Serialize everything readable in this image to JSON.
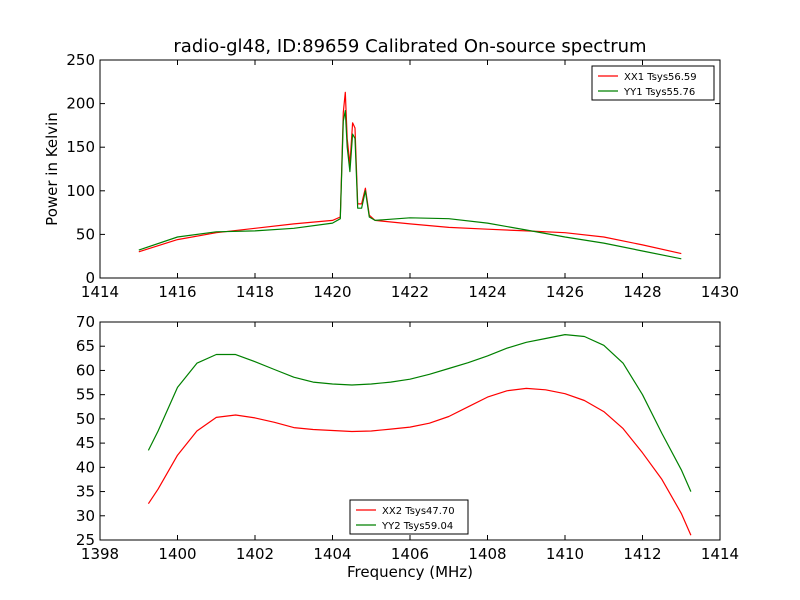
{
  "chart_data": [
    {
      "type": "line",
      "title": "radio-gl48, ID:89659 Calibrated On-source spectrum",
      "xlabel": "",
      "ylabel": "Power in Kelvin",
      "xlim": [
        1414,
        1430
      ],
      "ylim": [
        0,
        250
      ],
      "xticks": [
        "1414",
        "1416",
        "1418",
        "1420",
        "1422",
        "1424",
        "1426",
        "1428",
        "1430"
      ],
      "yticks": [
        "0",
        "50",
        "100",
        "150",
        "200",
        "250"
      ],
      "legend": "top-right",
      "series": [
        {
          "name": "XX1 Tsys56.59",
          "color": "#ff0000",
          "x": [
            1415.0,
            1416.0,
            1417.0,
            1418.0,
            1419.0,
            1420.0,
            1420.2,
            1420.28,
            1420.33,
            1420.38,
            1420.45,
            1420.52,
            1420.58,
            1420.65,
            1420.75,
            1420.85,
            1420.95,
            1421.1,
            1422.0,
            1423.0,
            1424.0,
            1425.0,
            1426.0,
            1427.0,
            1428.0,
            1429.0
          ],
          "y": [
            30,
            44,
            52,
            57,
            62,
            66,
            70,
            190,
            213,
            160,
            130,
            178,
            172,
            85,
            85,
            103,
            72,
            66,
            62,
            58,
            56,
            54,
            52,
            47,
            38,
            28
          ]
        },
        {
          "name": "YY1 Tsys55.76",
          "color": "#008000",
          "x": [
            1415.0,
            1416.0,
            1417.0,
            1418.0,
            1419.0,
            1420.0,
            1420.2,
            1420.28,
            1420.33,
            1420.38,
            1420.45,
            1420.52,
            1420.58,
            1420.65,
            1420.75,
            1420.85,
            1420.95,
            1421.1,
            1422.0,
            1423.0,
            1424.0,
            1425.0,
            1426.0,
            1427.0,
            1428.0,
            1429.0
          ],
          "y": [
            32,
            47,
            53,
            54,
            57,
            63,
            68,
            180,
            192,
            150,
            122,
            165,
            160,
            80,
            80,
            100,
            70,
            66,
            69,
            68,
            63,
            55,
            47,
            40,
            31,
            22
          ]
        }
      ]
    },
    {
      "type": "line",
      "title": "",
      "xlabel": "Frequency (MHz)",
      "ylabel": "",
      "xlim": [
        1398,
        1414
      ],
      "ylim": [
        25,
        70
      ],
      "xticks": [
        "1398",
        "1400",
        "1402",
        "1404",
        "1406",
        "1408",
        "1410",
        "1412",
        "1414"
      ],
      "yticks": [
        "25",
        "30",
        "35",
        "40",
        "45",
        "50",
        "55",
        "60",
        "65",
        "70"
      ],
      "legend": "lower-center",
      "series": [
        {
          "name": "XX2 Tsys47.70",
          "color": "#ff0000",
          "x": [
            1399.25,
            1399.5,
            1400.0,
            1400.5,
            1401.0,
            1401.5,
            1402.0,
            1402.5,
            1403.0,
            1403.5,
            1404.0,
            1404.5,
            1405.0,
            1405.5,
            1406.0,
            1406.5,
            1407.0,
            1407.5,
            1408.0,
            1408.5,
            1409.0,
            1409.5,
            1410.0,
            1410.5,
            1411.0,
            1411.5,
            1412.0,
            1412.5,
            1413.0,
            1413.25
          ],
          "y": [
            32.5,
            35.5,
            42.5,
            47.5,
            50.3,
            50.8,
            50.2,
            49.3,
            48.2,
            47.8,
            47.6,
            47.4,
            47.5,
            47.9,
            48.3,
            49.1,
            50.5,
            52.5,
            54.5,
            55.8,
            56.3,
            56.0,
            55.2,
            53.8,
            51.5,
            48.0,
            43.0,
            37.5,
            30.5,
            26.0
          ]
        },
        {
          "name": "YY2 Tsys59.04",
          "color": "#008000",
          "x": [
            1399.25,
            1399.5,
            1400.0,
            1400.5,
            1401.0,
            1401.5,
            1402.0,
            1402.5,
            1403.0,
            1403.5,
            1404.0,
            1404.5,
            1405.0,
            1405.5,
            1406.0,
            1406.5,
            1407.0,
            1407.5,
            1408.0,
            1408.5,
            1409.0,
            1409.5,
            1410.0,
            1410.5,
            1411.0,
            1411.5,
            1412.0,
            1412.5,
            1413.0,
            1413.25
          ],
          "y": [
            43.5,
            47.5,
            56.5,
            61.5,
            63.3,
            63.3,
            61.8,
            60.2,
            58.6,
            57.6,
            57.2,
            57.0,
            57.2,
            57.6,
            58.2,
            59.2,
            60.4,
            61.6,
            63.0,
            64.6,
            65.8,
            66.6,
            67.4,
            67.0,
            65.2,
            61.5,
            55.0,
            47.0,
            39.5,
            35.0
          ]
        }
      ]
    }
  ]
}
